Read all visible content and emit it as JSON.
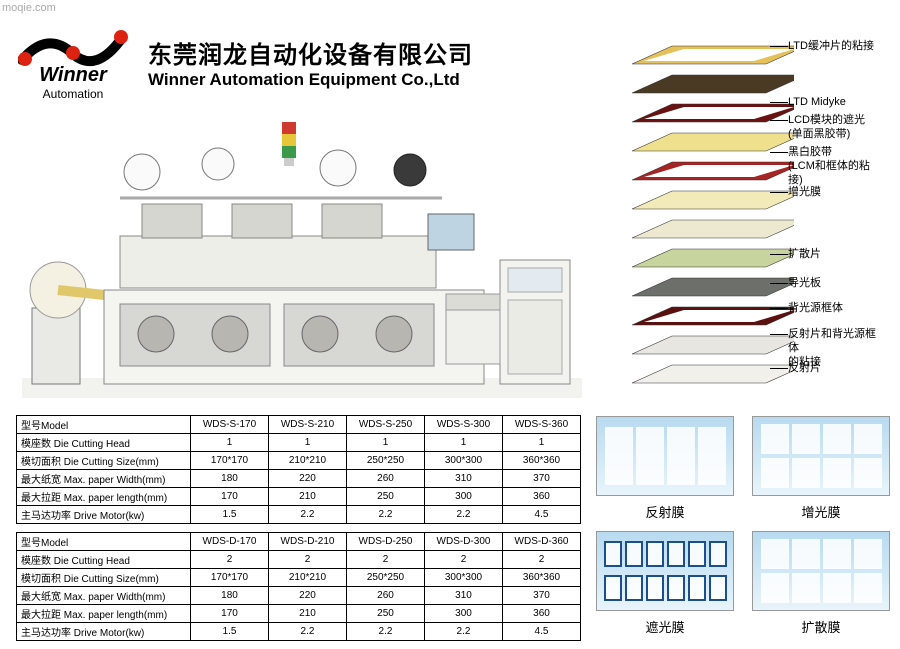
{
  "watermark": "moqie.com",
  "logo": {
    "main": "Winner",
    "sub": "Automation"
  },
  "company": {
    "cn": "东莞润龙自动化设备有限公司",
    "en": "Winner Automation Equipment Co.,Ltd"
  },
  "diagram": {
    "labels": [
      "LTD缓冲片的粘接",
      "LTD Midyke",
      "LCD模块的遮光\n(单面黑胶带)",
      "黑白胶带\n(LCM和框体的粘接)",
      "增光膜",
      "扩散片",
      "导光板",
      "背光源框体",
      "反射片和背光源框体\n的粘接",
      "反射片"
    ],
    "layerColors": [
      "#e6c15a",
      "#4a3a24",
      "#6a1212",
      "#efe08e",
      "#a62424",
      "#f2eab8",
      "#ede9d0",
      "#c8d49e",
      "#6d6f6a",
      "#5b0f0f",
      "#e8e6e0",
      "#f2f0eb"
    ]
  },
  "tables": [
    {
      "rows": [
        [
          "型号Model",
          "WDS-S-170",
          "WDS-S-210",
          "WDS-S-250",
          "WDS-S-300",
          "WDS-S-360"
        ],
        [
          "模座数 Die Cutting Head",
          "1",
          "1",
          "1",
          "1",
          "1"
        ],
        [
          "模切面积 Die Cutting Size(mm)",
          "170*170",
          "210*210",
          "250*250",
          "300*300",
          "360*360"
        ],
        [
          "最大纸宽 Max. paper Width(mm)",
          "180",
          "220",
          "260",
          "310",
          "370"
        ],
        [
          "最大拉距 Max. paper length(mm)",
          "170",
          "210",
          "250",
          "300",
          "360"
        ],
        [
          "主马达功率 Drive Motor(kw)",
          "1.5",
          "2.2",
          "2.2",
          "2.2",
          "4.5"
        ]
      ]
    },
    {
      "rows": [
        [
          "型号Model",
          "WDS-D-170",
          "WDS-D-210",
          "WDS-D-250",
          "WDS-D-300",
          "WDS-D-360"
        ],
        [
          "模座数 Die Cutting Head",
          "2",
          "2",
          "2",
          "2",
          "2"
        ],
        [
          "模切面积 Die Cutting Size(mm)",
          "170*170",
          "210*210",
          "250*250",
          "300*300",
          "360*360"
        ],
        [
          "最大纸宽 Max. paper Width(mm)",
          "180",
          "220",
          "260",
          "310",
          "370"
        ],
        [
          "最大拉距 Max. paper length(mm)",
          "170",
          "210",
          "250",
          "300",
          "360"
        ],
        [
          "主马达功率 Drive Motor(kw)",
          "1.5",
          "2.2",
          "2.2",
          "2.2",
          "4.5"
        ]
      ]
    }
  ],
  "samples": [
    {
      "label": "反射膜",
      "chips": 4,
      "chipW": 28,
      "chipH": 58
    },
    {
      "label": "增光膜",
      "chips": 8,
      "chipW": 28,
      "chipH": 30
    },
    {
      "label": "遮光膜",
      "chips": 12,
      "chipW": 18,
      "chipH": 26,
      "border": "#1b4e8a"
    },
    {
      "label": "扩散膜",
      "chips": 8,
      "chipW": 28,
      "chipH": 30
    }
  ],
  "diagLabelY": [
    4,
    60,
    78,
    110,
    150,
    212,
    241,
    266,
    292,
    326
  ]
}
